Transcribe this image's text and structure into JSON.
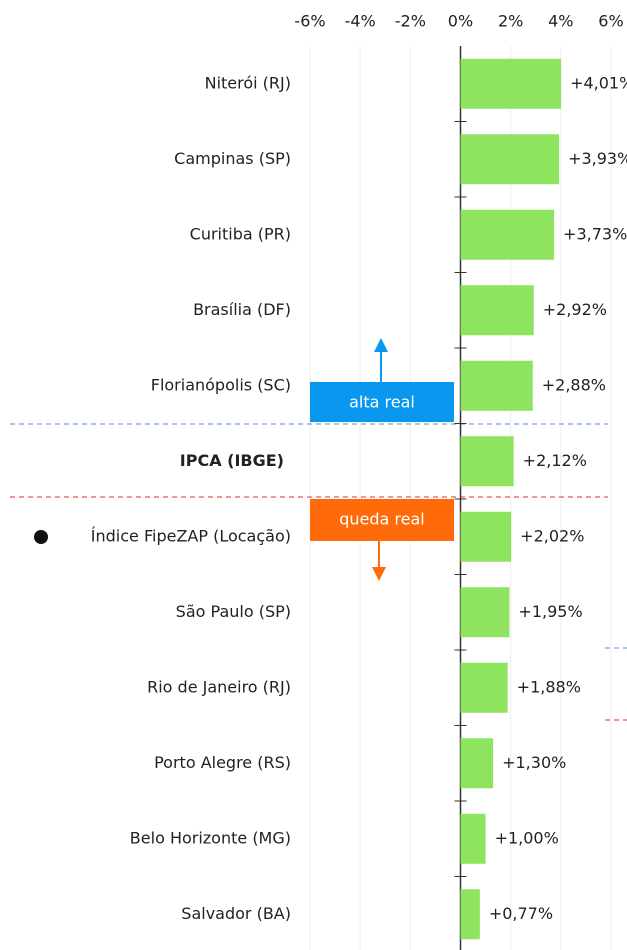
{
  "chart_data": {
    "type": "bar",
    "orientation": "horizontal",
    "categories": [
      "Niterói (RJ)",
      "Campinas (SP)",
      "Curitiba (PR)",
      "Brasília (DF)",
      "Florianópolis (SC)",
      "IPCA (IBGE)",
      "Índice FipeZAP (Locação)",
      "São Paulo (SP)",
      "Rio de Janeiro (RJ)",
      "Porto Alegre (RS)",
      "Belo Horizonte (MG)",
      "Salvador (BA)"
    ],
    "values": [
      4.01,
      3.93,
      3.73,
      2.92,
      2.88,
      2.12,
      2.02,
      1.95,
      1.88,
      1.3,
      1.0,
      0.77
    ],
    "value_labels": [
      "+4,01%",
      "+3,93%",
      "+3,73%",
      "+2,92%",
      "+2,88%",
      "+2,12%",
      "+2,02%",
      "+1,95%",
      "+1,88%",
      "+1,30%",
      "+1,00%",
      "+0,77%"
    ],
    "color": "#8ee35f",
    "xlim": [
      -6,
      6
    ],
    "xticks": [
      {
        "value": -6,
        "label": "-6%"
      },
      {
        "value": -4,
        "label": "-4%"
      },
      {
        "value": -2,
        "label": "-2%"
      },
      {
        "value": 0,
        "label": "0%"
      },
      {
        "value": 2,
        "label": "2%"
      },
      {
        "value": 4,
        "label": "4%"
      },
      {
        "value": 6,
        "label": "6%"
      }
    ],
    "grid": true,
    "annotations": [
      "alta real",
      "queda real"
    ]
  }
}
